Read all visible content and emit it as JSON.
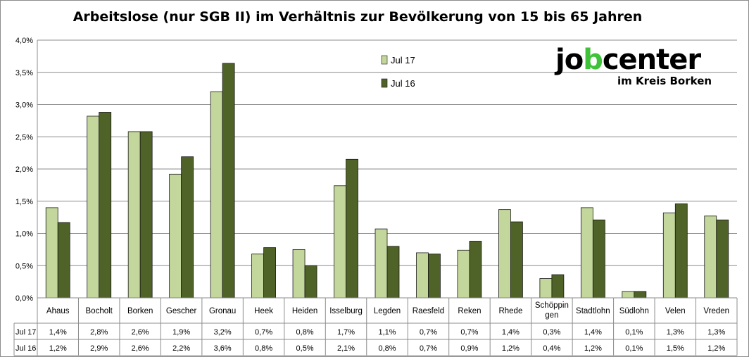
{
  "chart_data": {
    "type": "bar",
    "title": "Arbeitslose (nur SGB II) im Verhältnis zur Bevölkerung von 15 bis 65 Jahren",
    "categories": [
      "Ahaus",
      "Bocholt",
      "Borken",
      "Gescher",
      "Gronau",
      "Heek",
      "Heiden",
      "Isselburg",
      "Legden",
      "Raesfeld",
      "Reken",
      "Rhede",
      "Schöppin gen",
      "Stadtlohn",
      "Südlohn",
      "Velen",
      "Vreden"
    ],
    "category_lines": [
      [
        "Ahaus"
      ],
      [
        "Bocholt"
      ],
      [
        "Borken"
      ],
      [
        "Gescher"
      ],
      [
        "Gronau"
      ],
      [
        "Heek"
      ],
      [
        "Heiden"
      ],
      [
        "Isselburg"
      ],
      [
        "Legden"
      ],
      [
        "Raesfeld"
      ],
      [
        "Reken"
      ],
      [
        "Rhede"
      ],
      [
        "Schöppin",
        "gen"
      ],
      [
        "Stadtlohn"
      ],
      [
        "Südlohn"
      ],
      [
        "Velen"
      ],
      [
        "Vreden"
      ]
    ],
    "series": [
      {
        "name": "Jul 17",
        "color": "#c3d69b",
        "values": [
          1.4,
          2.82,
          2.58,
          1.92,
          3.2,
          0.68,
          0.75,
          1.74,
          1.07,
          0.7,
          0.74,
          1.37,
          0.3,
          1.4,
          0.1,
          1.32,
          1.27
        ],
        "table": [
          "1,4%",
          "2,8%",
          "2,6%",
          "1,9%",
          "3,2%",
          "0,7%",
          "0,8%",
          "1,7%",
          "1,1%",
          "0,7%",
          "0,7%",
          "1,4%",
          "0,3%",
          "1,4%",
          "0,1%",
          "1,3%",
          "1,3%"
        ]
      },
      {
        "name": "Jul 16",
        "color": "#4f6228",
        "values": [
          1.17,
          2.88,
          2.58,
          2.19,
          3.64,
          0.78,
          0.5,
          2.15,
          0.8,
          0.68,
          0.88,
          1.18,
          0.36,
          1.21,
          0.1,
          1.46,
          1.21
        ],
        "table": [
          "1,2%",
          "2,9%",
          "2,6%",
          "2,2%",
          "3,6%",
          "0,8%",
          "0,5%",
          "2,1%",
          "0,8%",
          "0,7%",
          "0,9%",
          "1,2%",
          "0,4%",
          "1,2%",
          "0,1%",
          "1,5%",
          "1,2%"
        ]
      }
    ],
    "ylim": [
      0,
      4.0
    ],
    "yticks": [
      "0,0%",
      "0,5%",
      "1,0%",
      "1,5%",
      "2,0%",
      "2,5%",
      "3,0%",
      "3,5%",
      "4,0%"
    ],
    "grid": true,
    "legend_position": "top-center",
    "data_table": true
  },
  "logo": {
    "part1": "jo",
    "part2": "b",
    "part3": "center",
    "subline": "im Kreis Borken"
  },
  "colors": {
    "bar_light": "#c3d69b",
    "bar_dark": "#4f6228",
    "bar_outline": "#1a1a1a",
    "grid": "#8c8c8c",
    "logo_accent": "#3fc23a"
  }
}
